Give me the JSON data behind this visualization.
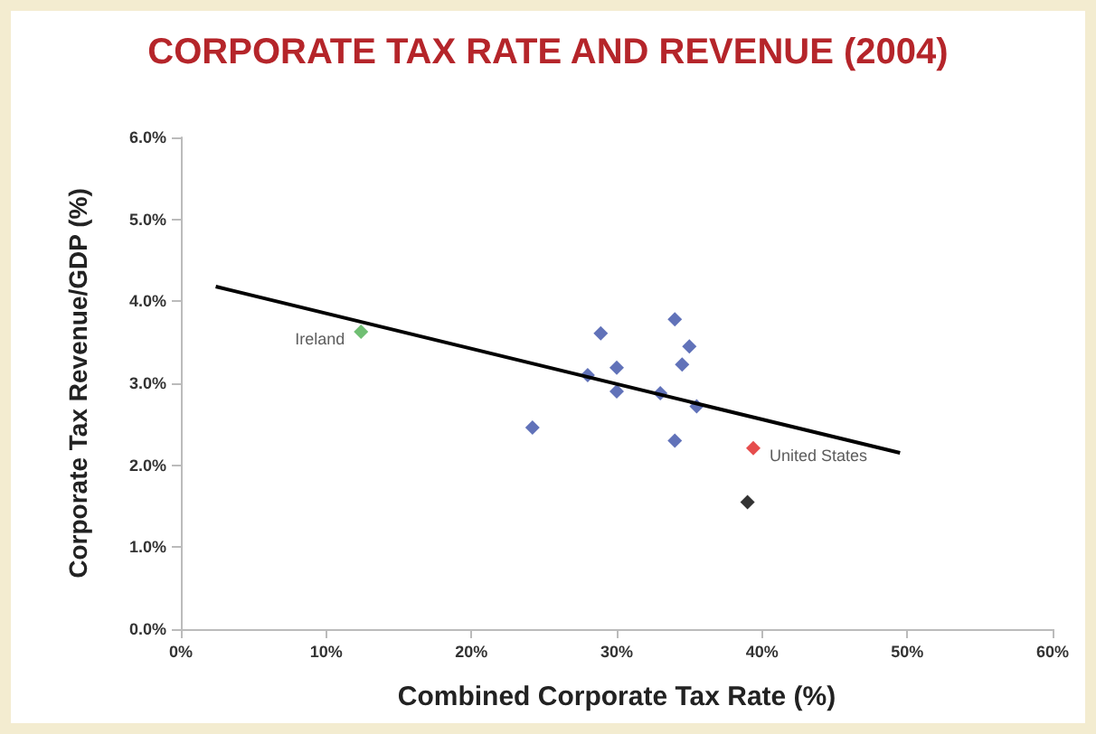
{
  "chart_data": {
    "type": "scatter",
    "title": "CORPORATE TAX RATE AND REVENUE (2004)",
    "xlabel": "Combined Corporate Tax Rate (%)",
    "ylabel": "Corporate Tax Revenue/GDP (%)",
    "xlim": [
      0,
      60
    ],
    "ylim": [
      0,
      6
    ],
    "xticks": [
      {
        "value": 0,
        "label": "0%"
      },
      {
        "value": 10,
        "label": "10%"
      },
      {
        "value": 20,
        "label": "20%"
      },
      {
        "value": 30,
        "label": "30%"
      },
      {
        "value": 40,
        "label": "40%"
      },
      {
        "value": 50,
        "label": "50%"
      },
      {
        "value": 60,
        "label": "60%"
      }
    ],
    "yticks": [
      {
        "value": 0,
        "label": "0.0%"
      },
      {
        "value": 1,
        "label": "1.0%"
      },
      {
        "value": 2,
        "label": "2.0%"
      },
      {
        "value": 3,
        "label": "3.0%"
      },
      {
        "value": 4,
        "label": "4.0%"
      },
      {
        "value": 5,
        "label": "5.0%"
      },
      {
        "value": 6,
        "label": "6.0%"
      }
    ],
    "grid": false,
    "marker": "diamond",
    "series": [
      {
        "type": "line",
        "marker": "none",
        "color": "#000000",
        "x": [
          2.4,
          49.5
        ],
        "values": [
          4.18,
          2.15
        ]
      },
      {
        "color": "#3a4fa8",
        "x": [
          24.2,
          28.9,
          28.0,
          30.0,
          30.0,
          33.0,
          34.0,
          35.0,
          34.5,
          35.5,
          34.0
        ],
        "values": [
          2.46,
          3.61,
          3.1,
          3.19,
          2.9,
          2.88,
          3.78,
          3.45,
          3.23,
          2.72,
          2.3
        ]
      },
      {
        "color": "#4caf50",
        "x": [
          12.4
        ],
        "values": [
          3.63
        ]
      },
      {
        "color": "#e02020",
        "x": [
          39.4
        ],
        "values": [
          2.21
        ]
      },
      {
        "color": "#000000",
        "x": [
          39.0
        ],
        "values": [
          1.55
        ]
      }
    ],
    "annotations": [
      {
        "text": "Ireland",
        "x": 12.4,
        "y": 3.63
      },
      {
        "text": "United States",
        "x": 39.4,
        "y": 2.21
      }
    ]
  }
}
